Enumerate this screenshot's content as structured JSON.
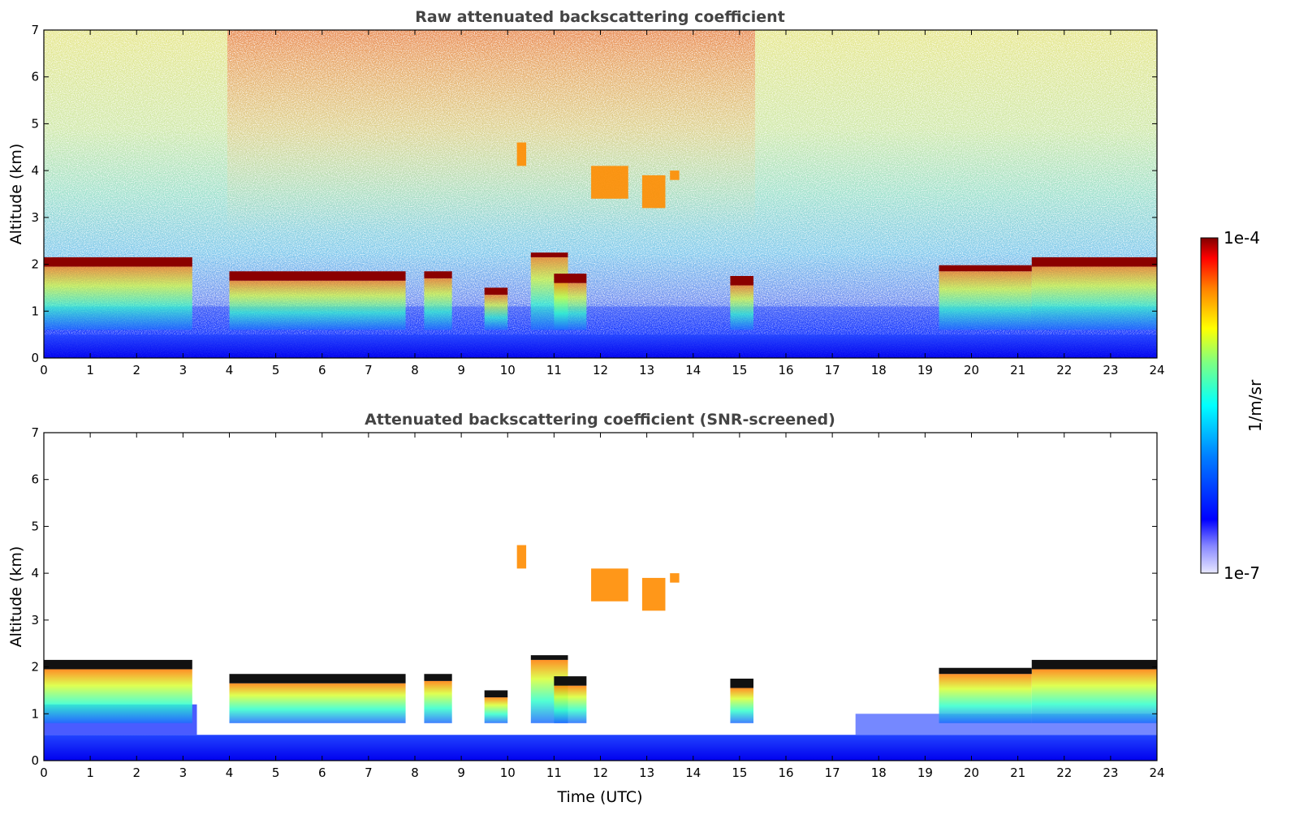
{
  "chart_data": [
    {
      "type": "heatmap",
      "title": "Raw attenuated backscattering coefficient",
      "xlabel": "",
      "ylabel": "Altitude (km)",
      "xlim": [
        0,
        24
      ],
      "ylim": [
        0,
        7
      ],
      "xticks": [
        "0",
        "1",
        "2",
        "3",
        "4",
        "5",
        "6",
        "7",
        "8",
        "9",
        "10",
        "11",
        "12",
        "13",
        "14",
        "15",
        "16",
        "17",
        "18",
        "19",
        "20",
        "21",
        "22",
        "23",
        "24"
      ],
      "yticks": [
        "0",
        "1",
        "2",
        "3",
        "4",
        "5",
        "6",
        "7"
      ],
      "screened": false,
      "cloud_top_km": [
        {
          "t": [
            0.0,
            3.2
          ],
          "base": 1.95,
          "top": 2.15
        },
        {
          "t": [
            4.0,
            7.8
          ],
          "base": 1.65,
          "top": 1.85
        },
        {
          "t": [
            8.2,
            8.8
          ],
          "base": 1.7,
          "top": 1.85
        },
        {
          "t": [
            9.5,
            10.0
          ],
          "base": 1.35,
          "top": 1.5
        },
        {
          "t": [
            10.5,
            11.3
          ],
          "base": 2.15,
          "top": 2.25
        },
        {
          "t": [
            11.0,
            11.7
          ],
          "base": 1.6,
          "top": 1.8
        },
        {
          "t": [
            14.8,
            15.3
          ],
          "base": 1.55,
          "top": 1.75
        },
        {
          "t": [
            19.3,
            21.3
          ],
          "base": 1.85,
          "top": 1.98
        },
        {
          "t": [
            21.3,
            24.0
          ],
          "base": 1.95,
          "top": 2.15
        }
      ],
      "high_cloud_km": [
        {
          "t": [
            10.2,
            10.4
          ],
          "base": 4.1,
          "top": 4.6
        },
        {
          "t": [
            11.8,
            12.6
          ],
          "base": 3.4,
          "top": 4.1
        },
        {
          "t": [
            12.9,
            13.4
          ],
          "base": 3.2,
          "top": 3.9
        },
        {
          "t": [
            13.5,
            13.7
          ],
          "base": 3.8,
          "top": 4.0
        }
      ]
    },
    {
      "type": "heatmap",
      "title": "Attenuated backscattering coefficient (SNR-screened)",
      "xlabel": "Time (UTC)",
      "ylabel": "Altitude (km)",
      "xlim": [
        0,
        24
      ],
      "ylim": [
        0,
        7
      ],
      "xticks": [
        "0",
        "1",
        "2",
        "3",
        "4",
        "5",
        "6",
        "7",
        "8",
        "9",
        "10",
        "11",
        "12",
        "13",
        "14",
        "15",
        "16",
        "17",
        "18",
        "19",
        "20",
        "21",
        "22",
        "23",
        "24"
      ],
      "yticks": [
        "0",
        "1",
        "2",
        "3",
        "4",
        "5",
        "6",
        "7"
      ],
      "screened": true
    }
  ],
  "colorbar": {
    "label": "1/m/sr",
    "max_label": "1e-4",
    "min_label": "1e-7",
    "colors": [
      "#800000",
      "#ff0000",
      "#ff8000",
      "#ffff00",
      "#80ff80",
      "#00ffff",
      "#0080ff",
      "#0000ff",
      "#e8e8ff"
    ]
  }
}
